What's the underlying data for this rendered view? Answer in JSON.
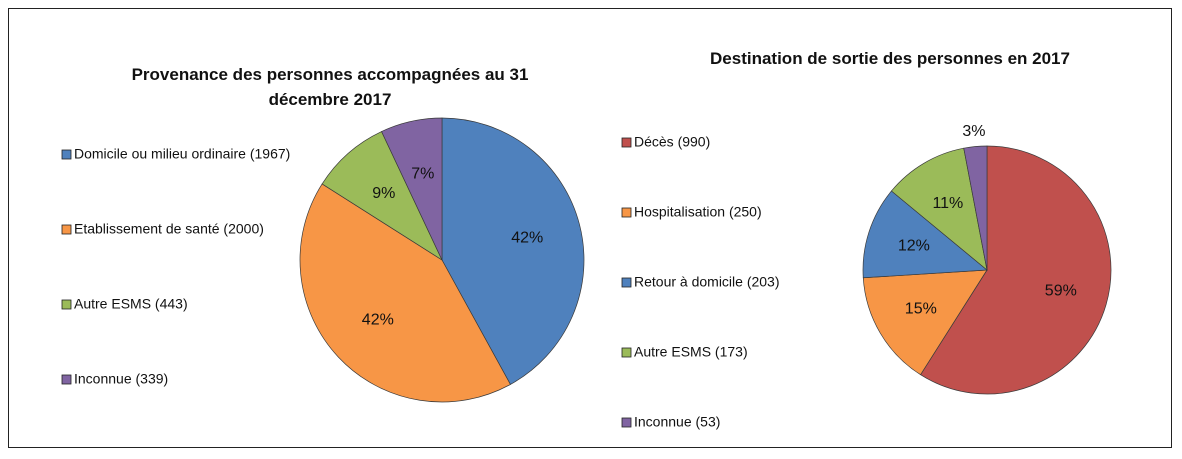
{
  "chart_data": [
    {
      "type": "pie",
      "title": "Provenance des personnes accompagnées au 31 décembre 2017",
      "categories": [
        "Domicile ou milieu ordinaire (1967)",
        "Etablissement de santé (2000)",
        "Autre ESMS (443)",
        "Inconnue (339)"
      ],
      "values": [
        42,
        42,
        9,
        7
      ],
      "value_labels": [
        "42%",
        "42%",
        "9%",
        "7%"
      ],
      "colors": [
        "#4f81bd",
        "#f79646",
        "#9bbb59",
        "#8064a2"
      ]
    },
    {
      "type": "pie",
      "title": "Destination de sortie des personnes en 2017",
      "categories": [
        "Décès (990)",
        "Hospitalisation (250)",
        "Retour à domicile (203)",
        "Autre ESMS (173)",
        "Inconnue (53)"
      ],
      "values": [
        59,
        15,
        12,
        11,
        3
      ],
      "value_labels": [
        "59%",
        "15%",
        "12%",
        "11%",
        "3%"
      ],
      "colors": [
        "#c0504d",
        "#f79646",
        "#4f81bd",
        "#9bbb59",
        "#8064a2"
      ]
    }
  ]
}
